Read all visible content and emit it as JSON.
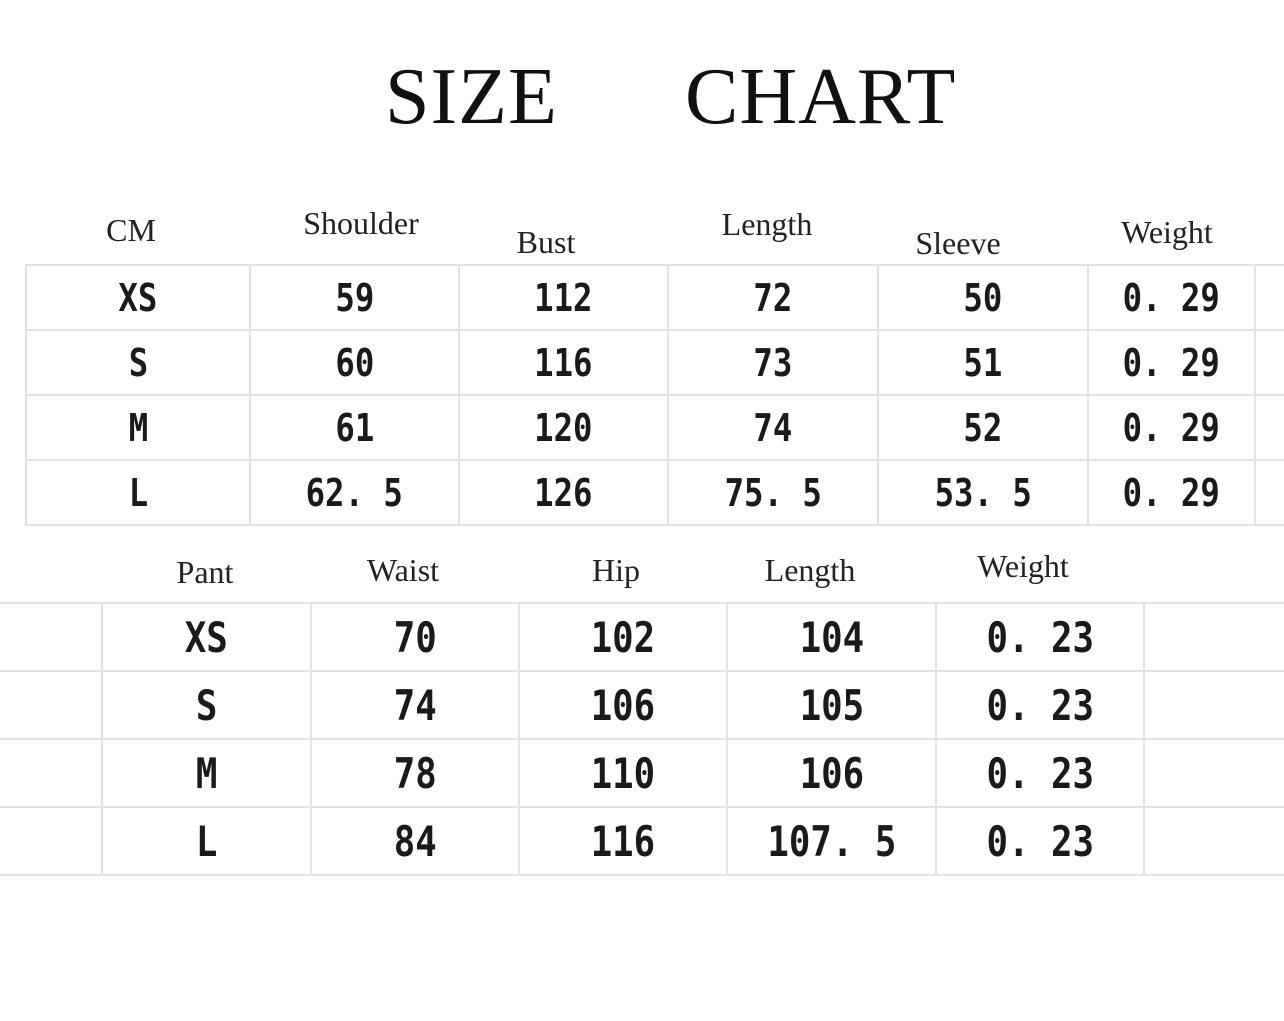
{
  "title": {
    "word1": "SIZE",
    "word2": "CHART"
  },
  "top_table": {
    "headers": [
      "CM",
      "Shoulder",
      "Bust",
      "Length",
      "Sleeve",
      "Weight"
    ],
    "rows": [
      [
        "XS",
        "59",
        "112",
        "72",
        "50",
        "0. 29"
      ],
      [
        "S",
        "60",
        "116",
        "73",
        "51",
        "0. 29"
      ],
      [
        "M",
        "61",
        "120",
        "74",
        "52",
        "0. 29"
      ],
      [
        "L",
        "62. 5",
        "126",
        "75. 5",
        "53. 5",
        "0. 29"
      ]
    ]
  },
  "bottom_table": {
    "headers": [
      "Pant",
      "Waist",
      "Hip",
      "Length",
      "Weight"
    ],
    "rows": [
      [
        "XS",
        "70",
        "102",
        "104",
        "0. 23"
      ],
      [
        "S",
        "74",
        "106",
        "105",
        "0. 23"
      ],
      [
        "M",
        "78",
        "110",
        "106",
        "0. 23"
      ],
      [
        "L",
        "84",
        "116",
        "107. 5",
        "0. 23"
      ]
    ]
  }
}
